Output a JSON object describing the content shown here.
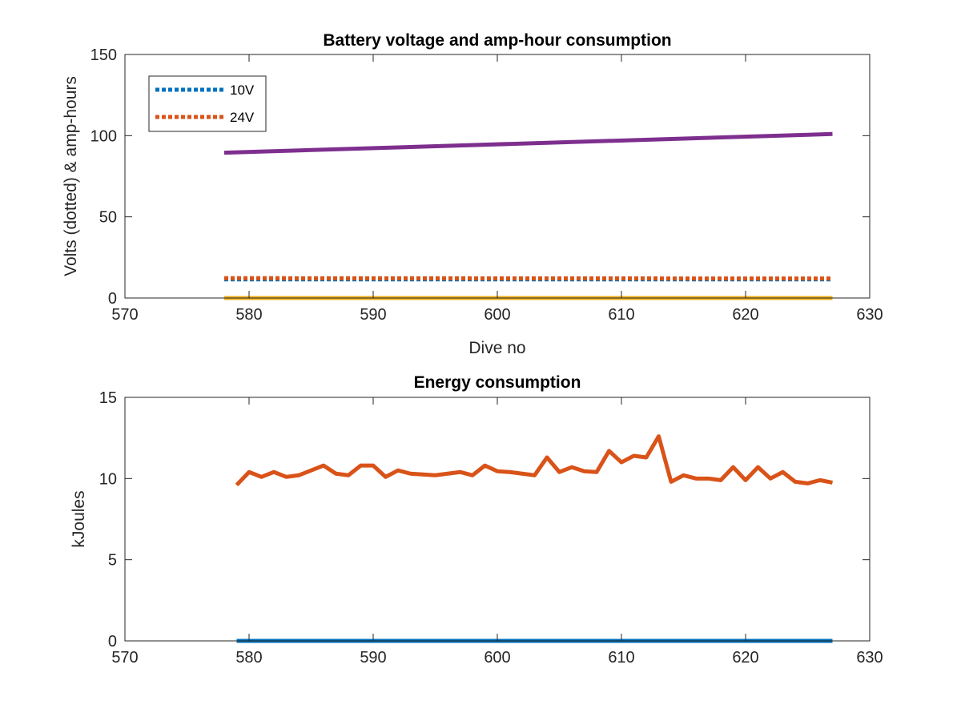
{
  "chart_data": [
    {
      "type": "line",
      "title": "Battery voltage and amp-hour consumption",
      "xlabel": "Dive no",
      "ylabel": "Volts (dotted) & amp-hours",
      "xlim": [
        570,
        630
      ],
      "ylim": [
        0,
        150
      ],
      "xticks": [
        570,
        580,
        590,
        600,
        610,
        620,
        630
      ],
      "yticks": [
        0,
        50,
        100,
        150
      ],
      "legend": {
        "placement": "top-left",
        "entries": [
          "10V",
          "24V"
        ]
      },
      "series": [
        {
          "name": "10V",
          "color": "#0072BD",
          "style": "dotted",
          "x": [
            578,
            627
          ],
          "y": [
            11.5,
            11.5
          ]
        },
        {
          "name": "24V",
          "color": "#D95319",
          "style": "dotted",
          "x": [
            578,
            627
          ],
          "y": [
            12.2,
            12.0
          ]
        },
        {
          "color": "#7E2F8E",
          "style": "solid",
          "x": [
            578,
            627
          ],
          "y": [
            89.5,
            101
          ]
        },
        {
          "color": "#EDB120",
          "style": "solid",
          "x": [
            578,
            627
          ],
          "y": [
            0,
            0
          ]
        }
      ]
    },
    {
      "type": "line",
      "title": "Energy consumption",
      "xlabel": "",
      "ylabel": "kJoules",
      "xlim": [
        570,
        630
      ],
      "ylim": [
        0,
        15
      ],
      "xticks": [
        570,
        580,
        590,
        600,
        610,
        620,
        630
      ],
      "yticks": [
        0,
        5,
        10,
        15
      ],
      "series": [
        {
          "color": "#D95319",
          "style": "solid",
          "x": [
            579,
            580,
            581,
            582,
            583,
            584,
            585,
            586,
            587,
            588,
            589,
            590,
            591,
            592,
            593,
            594,
            595,
            596,
            597,
            598,
            599,
            600,
            601,
            602,
            603,
            604,
            605,
            606,
            607,
            608,
            609,
            610,
            611,
            612,
            613,
            614,
            615,
            616,
            617,
            618,
            619,
            620,
            621,
            622,
            623,
            624,
            625,
            626,
            627
          ],
          "y": [
            9.6,
            10.4,
            10.1,
            10.4,
            10.1,
            10.2,
            10.5,
            10.8,
            10.3,
            10.2,
            10.8,
            10.8,
            10.1,
            10.5,
            10.3,
            10.25,
            10.2,
            10.3,
            10.4,
            10.2,
            10.8,
            10.45,
            10.4,
            10.3,
            10.2,
            11.3,
            10.4,
            10.7,
            10.45,
            10.4,
            11.7,
            11.0,
            11.4,
            11.3,
            12.6,
            9.8,
            10.2,
            10.0,
            10.0,
            9.9,
            10.7,
            9.9,
            10.7,
            10.0,
            10.4,
            9.8,
            9.7,
            9.9,
            9.75
          ]
        },
        {
          "color": "#0072BD",
          "style": "solid",
          "x": [
            579,
            627
          ],
          "y": [
            0,
            0
          ]
        }
      ]
    }
  ]
}
